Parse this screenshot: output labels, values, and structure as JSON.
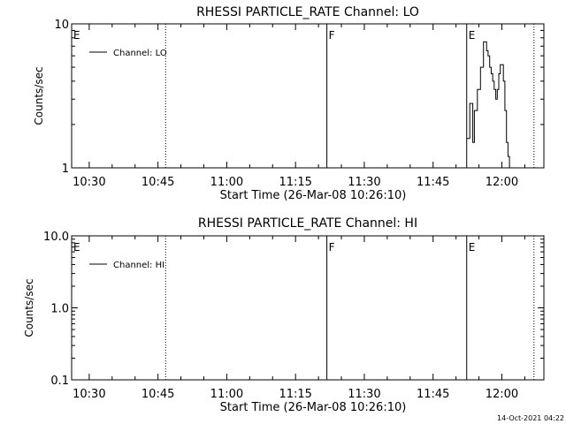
{
  "timestamp": "14-Oct-2021 04:22",
  "chart_data": [
    {
      "type": "line",
      "title": "RHESSI PARTICLE_RATE Channel: LO",
      "xlabel": "Start Time (26-Mar-08 10:26:10)",
      "ylabel": "Counts/sec",
      "yscale": "log",
      "ylim": [
        1,
        10
      ],
      "xlim": [
        "10:26:10",
        "12:09:10"
      ],
      "x_ticks": [
        "10:30",
        "10:45",
        "11:00",
        "11:15",
        "11:30",
        "11:45",
        "12:00"
      ],
      "y_ticks": [
        "1",
        "10"
      ],
      "legend": {
        "position": "top-left"
      },
      "markers": [
        {
          "time": "10:26:10",
          "label": "E",
          "style": "solid"
        },
        {
          "time": "10:46:40",
          "label": "",
          "style": "dotted"
        },
        {
          "time": "11:21:50",
          "label": "F",
          "style": "solid"
        },
        {
          "time": "11:52:20",
          "label": "E",
          "style": "solid"
        },
        {
          "time": "12:07:00",
          "label": "",
          "style": "dotted"
        }
      ],
      "series": [
        {
          "name": "Channel: LO",
          "x": [
            "11:52:20",
            "11:52:40",
            "11:53:00",
            "11:53:20",
            "11:53:40",
            "11:54:00",
            "11:54:20",
            "11:54:40",
            "11:55:00",
            "11:55:20",
            "11:55:40",
            "11:56:00",
            "11:56:20",
            "11:56:40",
            "11:57:00",
            "11:57:20",
            "11:57:40",
            "11:58:00",
            "11:58:20",
            "11:58:40",
            "11:59:00",
            "11:59:20",
            "11:59:40",
            "12:00:00",
            "12:00:20",
            "12:00:40",
            "12:01:00",
            "12:01:20",
            "12:01:40"
          ],
          "y": [
            1.6,
            1.6,
            2.8,
            2.8,
            1.5,
            2.5,
            2.5,
            3.5,
            3.5,
            5.0,
            5.0,
            7.5,
            7.5,
            6.5,
            6.0,
            5.0,
            4.5,
            4.0,
            3.5,
            3.0,
            3.5,
            4.5,
            5.2,
            5.2,
            4.0,
            2.5,
            1.5,
            1.2,
            1.0
          ]
        }
      ]
    },
    {
      "type": "line",
      "title": "RHESSI PARTICLE_RATE Channel: HI",
      "xlabel": "Start Time (26-Mar-08 10:26:10)",
      "ylabel": "Counts/sec",
      "yscale": "log",
      "ylim": [
        0.1,
        10
      ],
      "xlim": [
        "10:26:10",
        "12:09:10"
      ],
      "x_ticks": [
        "10:30",
        "10:45",
        "11:00",
        "11:15",
        "11:30",
        "11:45",
        "12:00"
      ],
      "y_ticks": [
        "0.1",
        "1.0",
        "10.0"
      ],
      "legend": {
        "position": "top-left"
      },
      "markers": [
        {
          "time": "10:26:10",
          "label": "E",
          "style": "solid"
        },
        {
          "time": "10:46:40",
          "label": "",
          "style": "dotted"
        },
        {
          "time": "11:21:50",
          "label": "F",
          "style": "solid"
        },
        {
          "time": "11:52:20",
          "label": "E",
          "style": "solid"
        },
        {
          "time": "12:07:00",
          "label": "",
          "style": "dotted"
        }
      ],
      "series": [
        {
          "name": "Channel: HI",
          "x": [],
          "y": []
        }
      ]
    }
  ]
}
